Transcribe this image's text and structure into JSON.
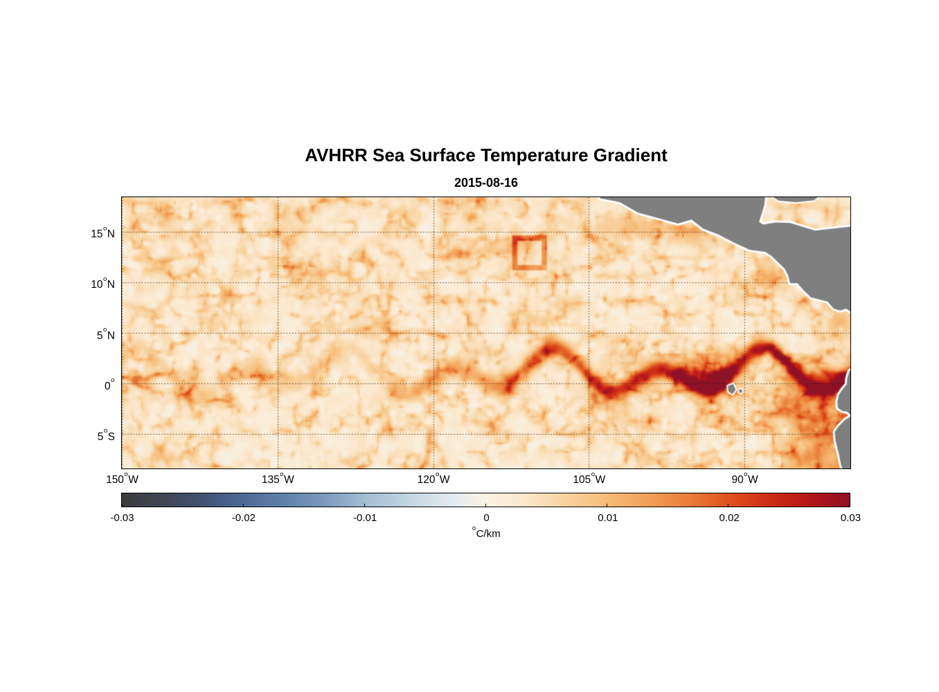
{
  "chart_data": {
    "type": "heatmap",
    "title": "AVHRR Sea Surface Temperature Gradient",
    "subtitle": "2015-08-16",
    "x_axis": {
      "range": [
        -150,
        -79.8
      ],
      "ticks": [
        {
          "value": -150,
          "label": "150°W"
        },
        {
          "value": -135,
          "label": "135°W"
        },
        {
          "value": -120,
          "label": "120°W"
        },
        {
          "value": -105,
          "label": "105°W"
        },
        {
          "value": -90,
          "label": "90°W"
        }
      ]
    },
    "y_axis": {
      "range": [
        -8.4,
        18.4
      ],
      "ticks": [
        {
          "value": 15,
          "label": "15°N"
        },
        {
          "value": 10,
          "label": "10°N"
        },
        {
          "value": 5,
          "label": "5°N"
        },
        {
          "value": 0,
          "label": "0°"
        },
        {
          "value": -5,
          "label": "5°S"
        }
      ]
    },
    "grid": {
      "style": "dotted",
      "color": "rgba(25,25,25,0.8)"
    },
    "colorbar": {
      "label": "°C/km",
      "range": [
        -0.03,
        0.03
      ],
      "ticks": [
        {
          "value": -0.03,
          "label": "-0.03"
        },
        {
          "value": -0.02,
          "label": "-0.02"
        },
        {
          "value": -0.01,
          "label": "-0.01"
        },
        {
          "value": 0,
          "label": "0"
        },
        {
          "value": 0.01,
          "label": "0.01"
        },
        {
          "value": 0.02,
          "label": "0.02"
        },
        {
          "value": 0.03,
          "label": "0.03"
        }
      ],
      "colormap_stops": [
        {
          "t": 0.0,
          "color": "#3c3c3e"
        },
        {
          "t": 0.06,
          "color": "#3f4656"
        },
        {
          "t": 0.12,
          "color": "#44557a"
        },
        {
          "t": 0.167,
          "color": "#4e6b97"
        },
        {
          "t": 0.22,
          "color": "#5f80a9"
        },
        {
          "t": 0.28,
          "color": "#7d9abd"
        },
        {
          "t": 0.333,
          "color": "#a2bdd2"
        },
        {
          "t": 0.4,
          "color": "#c6d8e3"
        },
        {
          "t": 0.46,
          "color": "#e7ecef"
        },
        {
          "t": 0.5,
          "color": "#faf2e3"
        },
        {
          "t": 0.55,
          "color": "#fbe9cf"
        },
        {
          "t": 0.6,
          "color": "#f9d6a6"
        },
        {
          "t": 0.667,
          "color": "#f6bc78"
        },
        {
          "t": 0.72,
          "color": "#f2a159"
        },
        {
          "t": 0.78,
          "color": "#ea7d36"
        },
        {
          "t": 0.833,
          "color": "#e0531e"
        },
        {
          "t": 0.88,
          "color": "#d23317"
        },
        {
          "t": 0.93,
          "color": "#bc1c17"
        },
        {
          "t": 0.97,
          "color": "#a5121f"
        },
        {
          "t": 1.0,
          "color": "#8f1126"
        }
      ]
    },
    "land": {
      "color": "#7f7f7f",
      "coast_halo_color": "#ffffff",
      "polygons": [
        {
          "name": "central-america",
          "halo": 6,
          "points": [
            [
              -104.8,
              19.5
            ],
            [
              -103.9,
              18.3
            ],
            [
              -102,
              17.9
            ],
            [
              -100.3,
              16.9
            ],
            [
              -98.2,
              16.3
            ],
            [
              -96.4,
              15.8
            ],
            [
              -95.1,
              16.2
            ],
            [
              -94,
              15.3
            ],
            [
              -92.5,
              14.7
            ],
            [
              -91,
              13.9
            ],
            [
              -89.5,
              13.2
            ],
            [
              -88,
              13
            ],
            [
              -87.4,
              12.6
            ],
            [
              -86.7,
              11.9
            ],
            [
              -86.1,
              11.3
            ],
            [
              -85.8,
              10.7
            ],
            [
              -85.6,
              9.9
            ],
            [
              -84.9,
              9.9
            ],
            [
              -84.4,
              9.3
            ],
            [
              -83.6,
              8.5
            ],
            [
              -82.8,
              8.3
            ],
            [
              -82,
              8.1
            ],
            [
              -81.4,
              7.4
            ],
            [
              -80.8,
              7.2
            ],
            [
              -80.2,
              7.4
            ],
            [
              -79.8,
              7.1
            ],
            [
              -79.3,
              7.5
            ],
            [
              -78.7,
              7.9
            ],
            [
              -77.8,
              8.1
            ],
            [
              -76.5,
              8.3
            ],
            [
              -76.5,
              15.5
            ],
            [
              -79.8,
              15.5
            ],
            [
              -83.2,
              15.1
            ],
            [
              -84.3,
              15.45
            ],
            [
              -85.6,
              15.85
            ],
            [
              -87,
              15.9
            ],
            [
              -88.2,
              15.7
            ],
            [
              -88.6,
              15.95
            ],
            [
              -88.4,
              16.6
            ],
            [
              -88.1,
              17.6
            ],
            [
              -87.9,
              19.5
            ]
          ]
        },
        {
          "name": "caribbean-strip",
          "halo": 4,
          "points": [
            [
              -87.3,
              18.45
            ],
            [
              -82.9,
              18.45
            ],
            [
              -83.3,
              18.1
            ],
            [
              -85,
              17.9
            ],
            [
              -86.7,
              18.05
            ]
          ]
        },
        {
          "name": "south-america",
          "halo": 6,
          "points": [
            [
              -78.5,
              2.2
            ],
            [
              -79.9,
              1.2
            ],
            [
              -80.1,
              0.5
            ],
            [
              -80.15,
              -0.1
            ],
            [
              -80.5,
              -0.5
            ],
            [
              -80.9,
              -1.1
            ],
            [
              -81.05,
              -1.8
            ],
            [
              -81,
              -2.4
            ],
            [
              -80.6,
              -2.7
            ],
            [
              -80.1,
              -2.8
            ],
            [
              -79.7,
              -3.2
            ],
            [
              -80.3,
              -3.6
            ],
            [
              -80.9,
              -4.2
            ],
            [
              -81.3,
              -4.8
            ],
            [
              -81.25,
              -5.5
            ],
            [
              -81.1,
              -6.2
            ],
            [
              -80.9,
              -7
            ],
            [
              -80.7,
              -8
            ],
            [
              -80.4,
              -9
            ],
            [
              -76.5,
              -9
            ],
            [
              -76.5,
              2.2
            ]
          ]
        },
        {
          "name": "galapagos-isabela",
          "halo": 4,
          "points": [
            [
              -91.6,
              -0.25
            ],
            [
              -91.1,
              -0.05
            ],
            [
              -90.85,
              -0.6
            ],
            [
              -91.15,
              -1.05
            ],
            [
              -91.55,
              -0.8
            ]
          ]
        },
        {
          "name": "galapagos-san-cristobal",
          "halo": 3,
          "points": [
            [
              -90.45,
              -0.55
            ],
            [
              -90.2,
              -0.65
            ],
            [
              -90.3,
              -0.95
            ],
            [
              -90.55,
              -0.85
            ]
          ]
        }
      ]
    },
    "features": [
      {
        "name": "background",
        "desc": "Weak positive gradients ~0 to 0.005 °C/km over most of the basin (pale cream)"
      },
      {
        "name": "equatorial-front",
        "desc": "Meandering tropical-instability-wave front along 0-3N, intensifying east of 120W",
        "mean_lat": 1.0,
        "meander_amplitude_deg": 2.0,
        "meander_wavelength_deg": 10,
        "max_gradient": 0.03,
        "strongest_lon_range": [
          -100,
          -86
        ]
      },
      {
        "name": "eastern-boundary",
        "desc": "Very high gradients (0.02-0.03 °C/km) along Ecuador/Peru coast and around Galapagos"
      },
      {
        "name": "coastal-jets",
        "desc": "Orange gradient arcs off Tehuantepec, Papagayo and Panama gulfs"
      },
      {
        "name": "box-artifact",
        "desc": "Rectangular high-gradient artifact outline",
        "lon_range": [
          -112.1,
          -109.3
        ],
        "lat_range": [
          11.5,
          14.4
        ]
      }
    ]
  }
}
